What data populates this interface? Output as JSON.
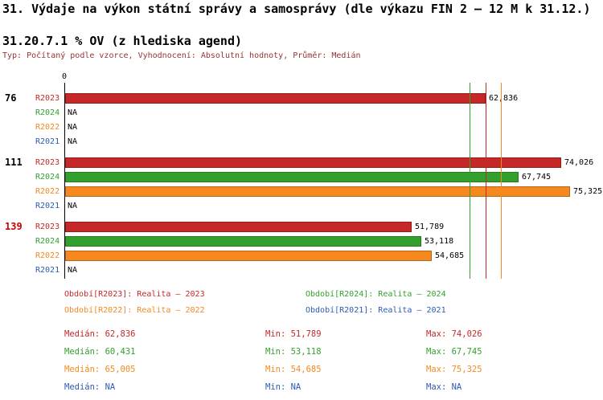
{
  "header": {
    "title": "31. Výdaje na výkon státní správy a samosprávy (dle výkazu FIN 2 – 12 M k 31.12.)",
    "subtitle": "31.20.7.1 % OV (z hlediska agend)",
    "type_line": "Typ: Počítaný podle vzorce, Vyhodnocení: Absolutní hodnoty, Průměr: Medián"
  },
  "chart_data": {
    "type": "bar",
    "orientation": "horizontal",
    "x_min": 0,
    "x_max": 75500,
    "axis_origin_label": "0",
    "series_colors": {
      "R2023": "#c62828",
      "R2024": "#33a02c",
      "R2022": "#f5891f",
      "R2021": "#2d5bb5"
    },
    "groups": [
      {
        "label": "76",
        "label_color": "#000000",
        "rows": [
          {
            "series": "R2023",
            "value": 62836,
            "display": "62,836"
          },
          {
            "series": "R2024",
            "value": null,
            "display": "NA"
          },
          {
            "series": "R2022",
            "value": null,
            "display": "NA"
          },
          {
            "series": "R2021",
            "value": null,
            "display": "NA"
          }
        ]
      },
      {
        "label": "111",
        "label_color": "#000000",
        "rows": [
          {
            "series": "R2023",
            "value": 74026,
            "display": "74,026"
          },
          {
            "series": "R2024",
            "value": 67745,
            "display": "67,745"
          },
          {
            "series": "R2022",
            "value": 75325,
            "display": "75,325"
          },
          {
            "series": "R2021",
            "value": null,
            "display": "NA"
          }
        ]
      },
      {
        "label": "139",
        "label_color": "#cc0000",
        "rows": [
          {
            "series": "R2023",
            "value": 51789,
            "display": "51,789"
          },
          {
            "series": "R2024",
            "value": 53118,
            "display": "53,118"
          },
          {
            "series": "R2022",
            "value": 54685,
            "display": "54,685"
          },
          {
            "series": "R2021",
            "value": null,
            "display": "NA"
          }
        ]
      }
    ],
    "median_lines": [
      {
        "series": "R2023",
        "value": 62836
      },
      {
        "series": "R2024",
        "value": 60431
      },
      {
        "series": "R2022",
        "value": 65005
      }
    ]
  },
  "legend": {
    "items": [
      {
        "series": "R2023",
        "text": "Období[R2023]: Realita – 2023"
      },
      {
        "series": "R2024",
        "text": "Období[R2024]: Realita – 2024"
      },
      {
        "series": "R2022",
        "text": "Období[R2022]: Realita – 2022"
      },
      {
        "series": "R2021",
        "text": "Období[R2021]: Realita – 2021"
      }
    ]
  },
  "stats": {
    "rows": [
      {
        "series": "R2023",
        "median": "Medián: 62,836",
        "min": "Min: 51,789",
        "max": "Max: 74,026"
      },
      {
        "series": "R2024",
        "median": "Medián: 60,431",
        "min": "Min: 53,118",
        "max": "Max: 67,745"
      },
      {
        "series": "R2022",
        "median": "Medián: 65,005",
        "min": "Min: 54,685",
        "max": "Max: 75,325"
      },
      {
        "series": "R2021",
        "median": "Medián: NA",
        "min": "Min: NA",
        "max": "Max: NA"
      }
    ]
  }
}
